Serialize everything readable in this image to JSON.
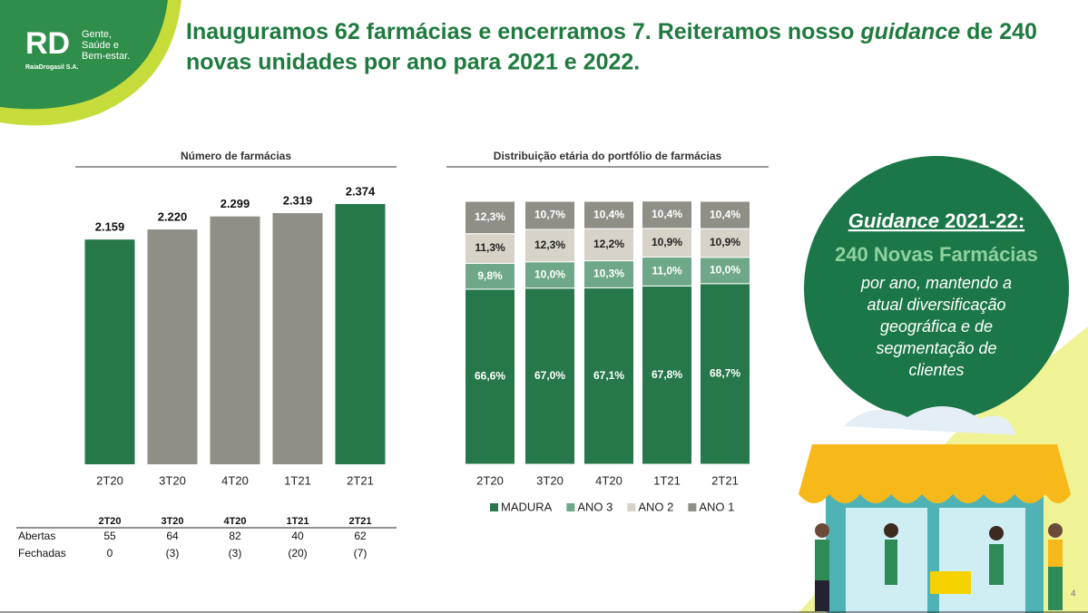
{
  "header": {
    "title_line1": [
      "Inauguramos 62 farmácias e encerramos 7. Reiteramos nosso ",
      "guidance",
      " de 240"
    ],
    "title_line2": "novas unidades por ano para 2021 e 2022."
  },
  "logo": {
    "mark": "RD",
    "tagline": [
      "Gente,",
      "Saúde e",
      "Bem-estar."
    ],
    "company": "RaiaDrogasil S.A."
  },
  "chart_data": [
    {
      "type": "bar",
      "title": "Número de farmácias",
      "categories": [
        "2T20",
        "3T20",
        "4T20",
        "1T21",
        "2T21"
      ],
      "values": [
        2159,
        2220,
        2299,
        2319,
        2374
      ],
      "value_labels": [
        "2.159",
        "2.220",
        "2.299",
        "2.319",
        "2.374"
      ],
      "colors": [
        "#26774a",
        "#8f8f88",
        "#8f8f88",
        "#8f8f88",
        "#26774a"
      ],
      "ylim": [
        800,
        2500
      ]
    },
    {
      "type": "bar",
      "stacked": true,
      "title": "Distribuição etária do portfólio de farmácias",
      "categories": [
        "2T20",
        "3T20",
        "4T20",
        "1T21",
        "2T21"
      ],
      "series": [
        {
          "name": "MADURA",
          "color": "#26774a",
          "values": [
            66.6,
            67.0,
            67.1,
            67.8,
            68.7
          ],
          "value_labels": [
            "66,6%",
            "67,0%",
            "67,1%",
            "67,8%",
            "68,7%"
          ]
        },
        {
          "name": "ANO 3",
          "color": "#6ea888",
          "values": [
            9.8,
            10.0,
            10.3,
            11.0,
            10.0
          ],
          "value_labels": [
            "9,8%",
            "10,0%",
            "10,3%",
            "11,0%",
            "10,0%"
          ]
        },
        {
          "name": "ANO 2",
          "color": "#d7d3c9",
          "values": [
            11.3,
            12.3,
            12.2,
            10.9,
            10.9
          ],
          "value_labels": [
            "11,3%",
            "12,3%",
            "12,2%",
            "10,9%",
            "10,9%"
          ]
        },
        {
          "name": "ANO 1",
          "color": "#8f8f88",
          "values": [
            12.3,
            10.7,
            10.4,
            10.4,
            10.4
          ],
          "value_labels": [
            "12,3%",
            "10,7%",
            "10,4%",
            "10,4%",
            "10,4%"
          ]
        }
      ],
      "ylim": [
        0,
        100
      ]
    }
  ],
  "table": {
    "columns": [
      "2T20",
      "3T20",
      "4T20",
      "1T21",
      "2T21"
    ],
    "rows": [
      [
        "Abertas",
        "55",
        "64",
        "82",
        "40",
        "62"
      ],
      [
        "Fechadas",
        "0",
        "(3)",
        "(3)",
        "(20)",
        "(7)"
      ]
    ]
  },
  "guidance": {
    "title": [
      "Guidance",
      " 2021-22:"
    ],
    "headline": "240 Novas Farmácias",
    "body": [
      "por ano, mantendo a",
      "atual diversificação",
      "geográfica e de",
      "segmentação de",
      "clientes"
    ]
  },
  "page_number": "4"
}
